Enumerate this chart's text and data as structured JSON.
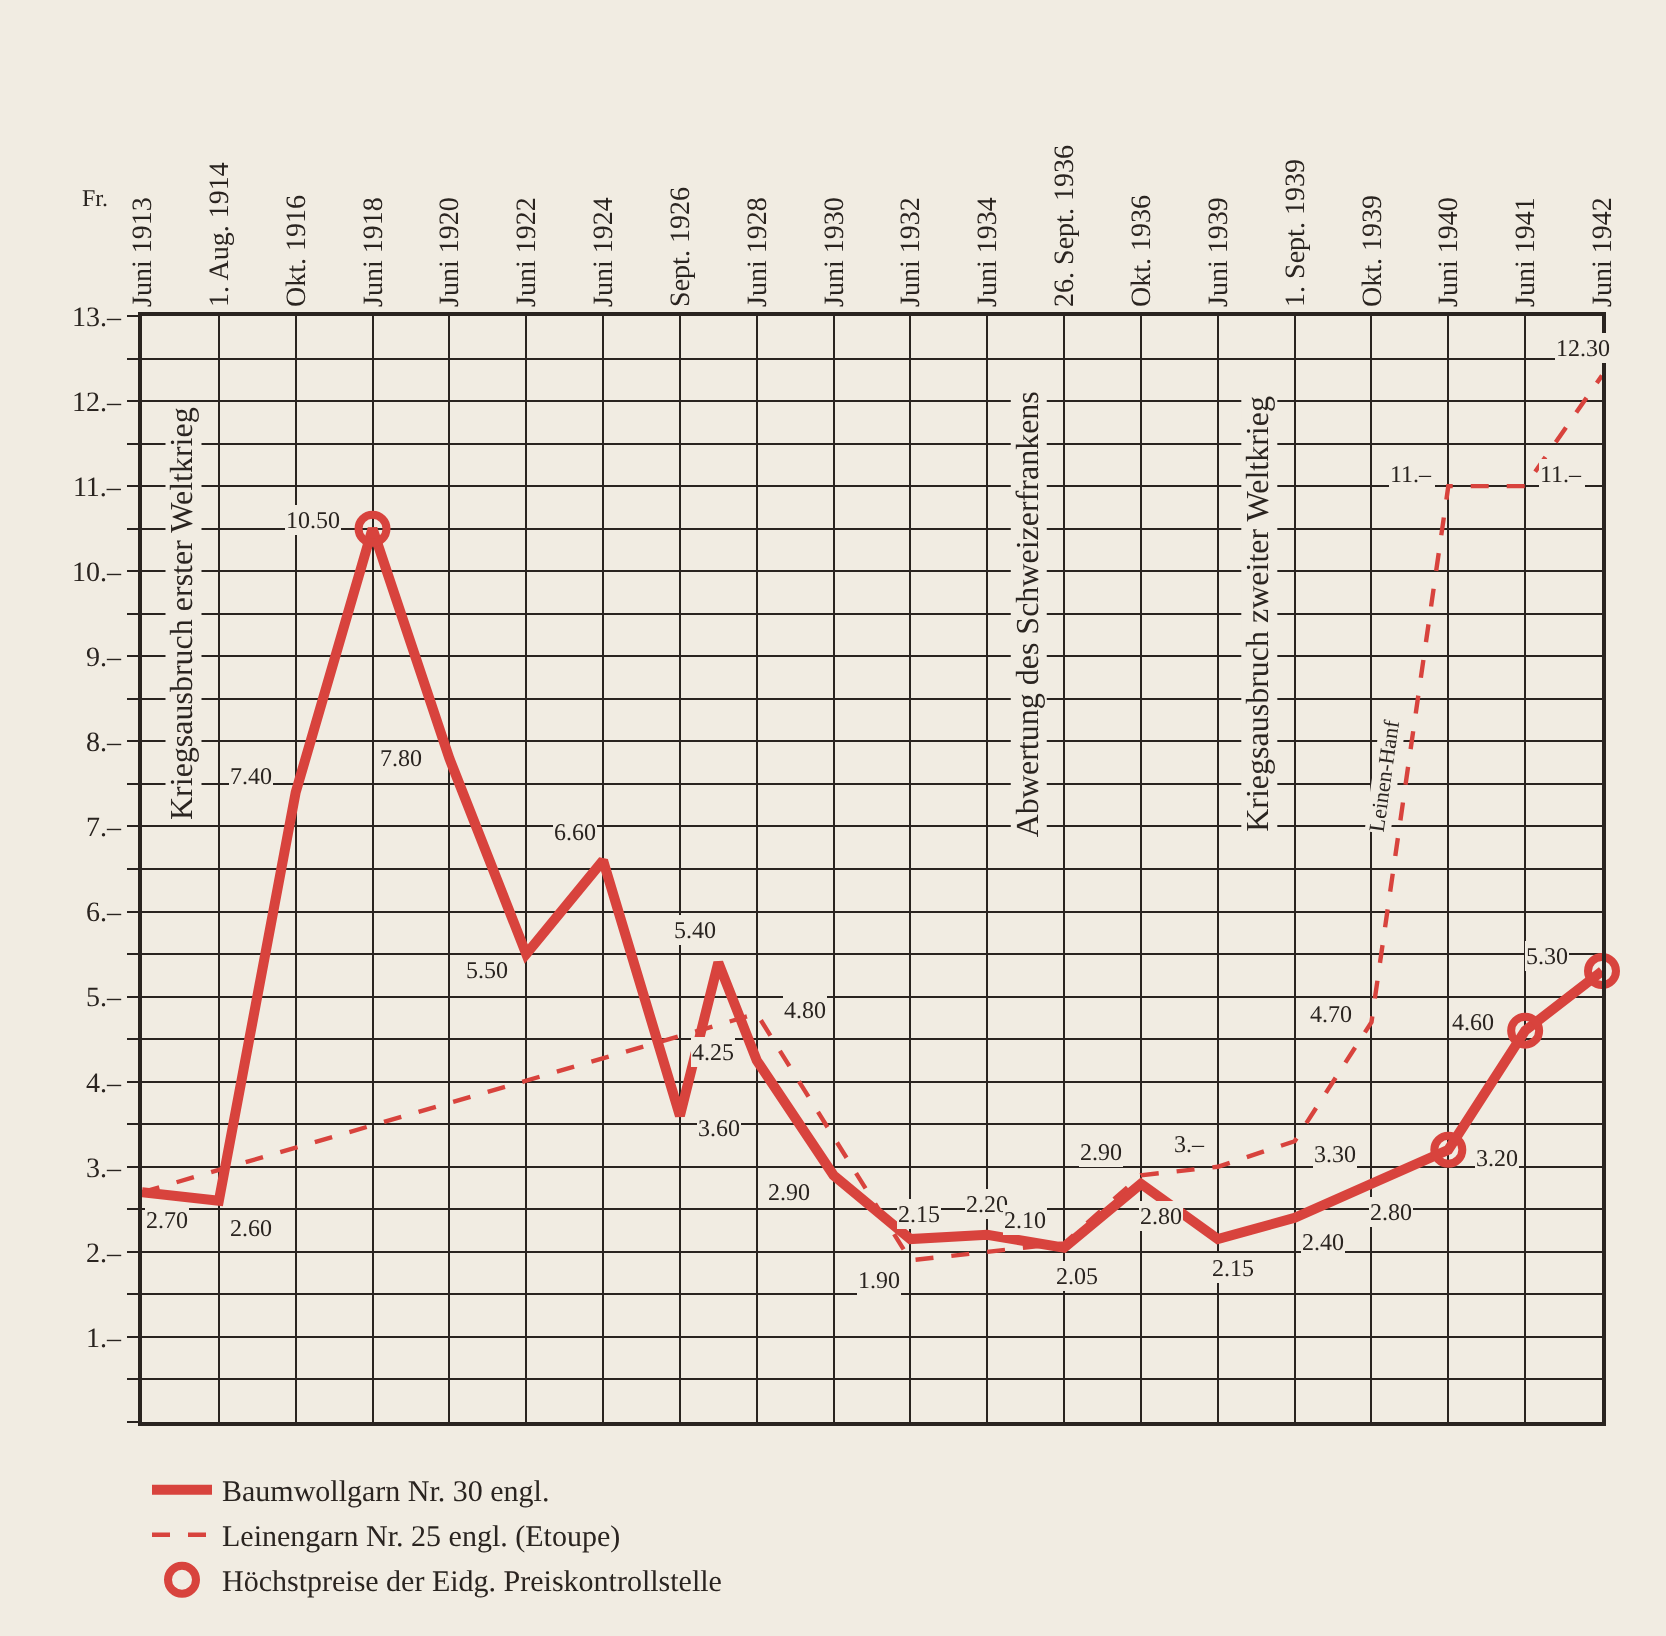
{
  "chart_data": {
    "type": "line",
    "ylabel": "Fr.",
    "ylim": [
      0,
      13
    ],
    "yticks": [
      {
        "value": 0,
        "label": null
      },
      {
        "value": 0.5,
        "label": null
      },
      {
        "value": 1,
        "label": "1.–"
      },
      {
        "value": 1.5,
        "label": null
      },
      {
        "value": 2,
        "label": "2.–"
      },
      {
        "value": 2.5,
        "label": null
      },
      {
        "value": 3,
        "label": "3.–"
      },
      {
        "value": 3.5,
        "label": null
      },
      {
        "value": 4,
        "label": "4.–"
      },
      {
        "value": 4.5,
        "label": null
      },
      {
        "value": 5,
        "label": "5.–"
      },
      {
        "value": 5.5,
        "label": null
      },
      {
        "value": 6,
        "label": "6.–"
      },
      {
        "value": 6.5,
        "label": null
      },
      {
        "value": 7,
        "label": "7.–"
      },
      {
        "value": 7.5,
        "label": null
      },
      {
        "value": 8,
        "label": "8.–"
      },
      {
        "value": 8.5,
        "label": null
      },
      {
        "value": 9,
        "label": "9.–"
      },
      {
        "value": 9.5,
        "label": null
      },
      {
        "value": 10,
        "label": "10.–"
      },
      {
        "value": 10.5,
        "label": null
      },
      {
        "value": 11,
        "label": "11.–"
      },
      {
        "value": 11.5,
        "label": null
      },
      {
        "value": 12,
        "label": "12.–"
      },
      {
        "value": 12.5,
        "label": null
      },
      {
        "value": 13,
        "label": "13.–"
      }
    ],
    "categories": [
      "Juni 1913",
      null,
      "1. Aug. 1914",
      null,
      "Okt. 1916",
      null,
      "Juni 1918",
      null,
      "Juni 1920",
      null,
      "Juni 1922",
      null,
      "Juni 1924",
      null,
      "Sept. 1926",
      null,
      "Juni 1928",
      null,
      "Juni 1930",
      null,
      "Juni 1932",
      null,
      "Juni 1934",
      null,
      "26. Sept. 1936",
      null,
      "Okt. 1936",
      null,
      "Juni 1939",
      null,
      "1. Sept. 1939",
      null,
      "Okt. 1939",
      null,
      "Juni 1940",
      null,
      "Juni 1941",
      null,
      "Juni 1942"
    ],
    "grid": true,
    "legend": "bottom left",
    "series": [
      {
        "name": "Baumwollgarn Nr. 30 engl.",
        "color": "#d8433d",
        "line_style": "solid",
        "marker": "none",
        "values": [
          2.7,
          null,
          2.6,
          null,
          7.4,
          null,
          10.5,
          null,
          7.8,
          null,
          5.5,
          null,
          6.6,
          null,
          3.6,
          5.4,
          4.25,
          null,
          2.9,
          null,
          2.15,
          null,
          2.2,
          null,
          2.05,
          null,
          2.8,
          null,
          2.15,
          null,
          2.4,
          null,
          2.8,
          null,
          3.2,
          null,
          4.6,
          null,
          5.3
        ],
        "value_labels": [
          "2.70",
          null,
          "2.60",
          null,
          "7.40",
          null,
          "10.50",
          null,
          "7.80",
          null,
          "5.50",
          null,
          "6.60",
          null,
          "3.60",
          "5.40",
          "4.25",
          null,
          "2.90",
          null,
          "2.15",
          null,
          "2.20",
          null,
          "2.05",
          null,
          "2.80",
          null,
          "2.15",
          null,
          "2.40",
          null,
          "2.80",
          null,
          "3.20",
          null,
          "4.60",
          null,
          "5.30"
        ]
      },
      {
        "name": "Leinengarn Nr. 25 engl. (Etoupe)",
        "color": "#d8433d",
        "line_style": "dashed",
        "marker": "none",
        "values": [
          2.7,
          null,
          null,
          null,
          null,
          null,
          null,
          null,
          null,
          null,
          null,
          null,
          null,
          null,
          null,
          null,
          4.8,
          null,
          null,
          null,
          1.9,
          null,
          null,
          null,
          2.1,
          null,
          2.9,
          null,
          3.0,
          null,
          3.3,
          null,
          4.7,
          null,
          11.0,
          null,
          11.0,
          null,
          12.3
        ],
        "value_labels": [
          null,
          null,
          null,
          null,
          null,
          null,
          null,
          null,
          null,
          null,
          null,
          null,
          null,
          null,
          null,
          null,
          "4.80",
          null,
          null,
          null,
          "1.90",
          null,
          null,
          null,
          "2.10",
          null,
          "2.90",
          null,
          "3.–",
          null,
          "3.30",
          null,
          "4.70",
          null,
          "11.–",
          null,
          "11.–",
          null,
          "12.30"
        ]
      },
      {
        "name": "Höchstpreise der Eidg. Preiskontrollstelle",
        "type": "scatter",
        "color": "#d8433d",
        "marker": "circle",
        "values": [
          null,
          null,
          null,
          null,
          null,
          null,
          10.5,
          null,
          null,
          null,
          null,
          null,
          null,
          null,
          null,
          null,
          null,
          null,
          null,
          null,
          null,
          null,
          null,
          null,
          null,
          null,
          null,
          null,
          null,
          null,
          null,
          null,
          null,
          null,
          3.2,
          null,
          4.6,
          null,
          5.3
        ]
      }
    ],
    "annotations": [
      "Kriegsausbruch erster Weltkrieg",
      "Abwertung des Schweizerfrankens",
      "Kriegsausbruch zweiter Weltkrieg",
      "Leinen-Hanf"
    ]
  }
}
